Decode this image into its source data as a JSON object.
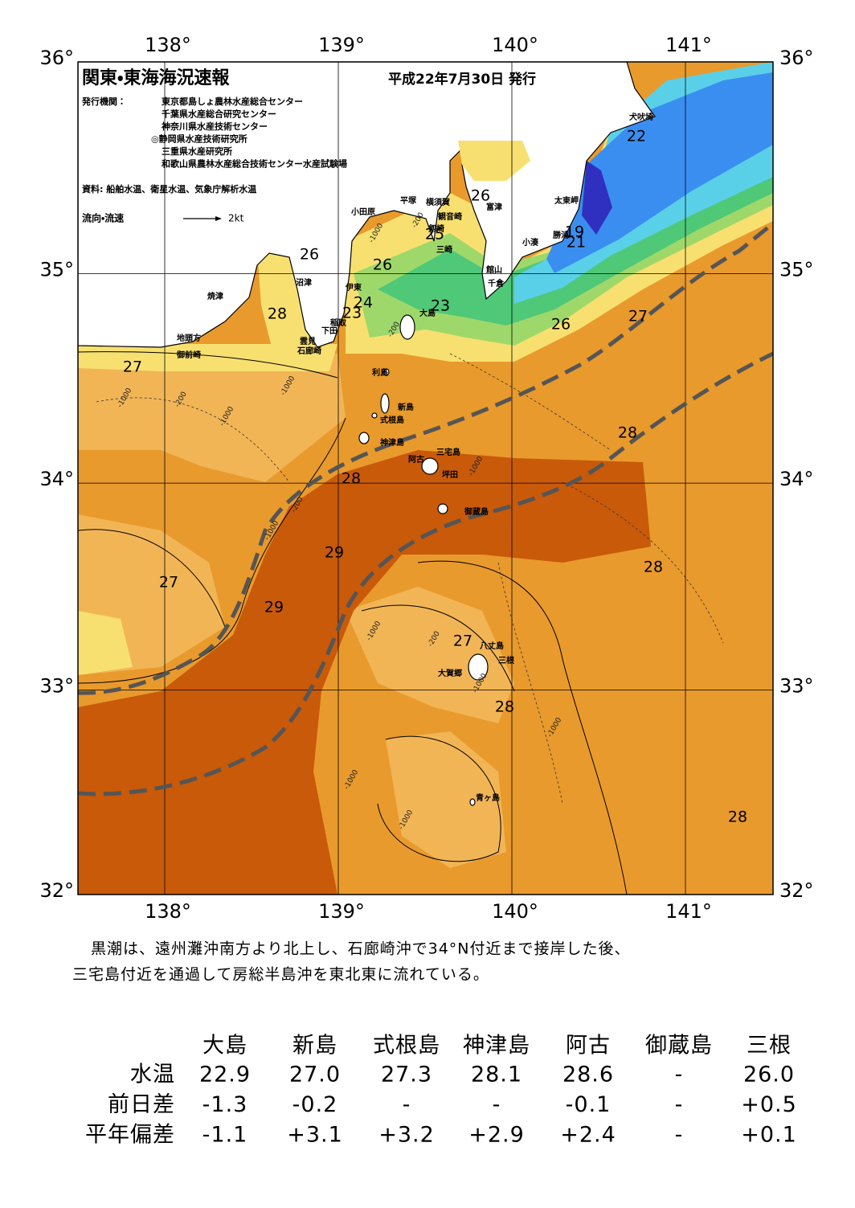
{
  "map": {
    "title": "関東・東海海況速報",
    "issued": "平成22年7月30日 発行",
    "issuers_label": "発行機関：",
    "issuers": [
      "東京都島しょ農林水産総合センター",
      "千葉県水産総合研究センター",
      "神奈川県水産技術センター",
      "◎静岡県水産技術研究所",
      "三重県水産研究所",
      "和歌山県農林水産総合技術センター水産試験場"
    ],
    "sources": "資料: 船舶水温、衛星水温、気象庁解析水温",
    "legend": {
      "label": "流向・流速",
      "scale": "2kt"
    },
    "lon_ticks": [
      {
        "value": 138,
        "label": "138°"
      },
      {
        "value": 139,
        "label": "139°"
      },
      {
        "value": 140,
        "label": "140°"
      },
      {
        "value": 141,
        "label": "141°"
      }
    ],
    "lat_ticks": [
      {
        "value": 36,
        "label": "36°"
      },
      {
        "value": 35,
        "label": "35°"
      },
      {
        "value": 34,
        "label": "34°"
      },
      {
        "value": 33,
        "label": "33°"
      },
      {
        "value": 32,
        "label": "32°"
      }
    ],
    "places": [
      "犬吠埼",
      "太東岬",
      "勝浦",
      "小湊",
      "館山",
      "千倉",
      "富津",
      "横須賀",
      "観音崎",
      "剱崎",
      "三崎",
      "平塚",
      "小田原",
      "沼津",
      "伊東",
      "焼津",
      "稲取",
      "下田",
      "雲見",
      "石廊崎",
      "地頭方",
      "御前崎",
      "大島",
      "利島",
      "新島",
      "式根島",
      "神津島",
      "三宅島",
      "阿古",
      "坪田",
      "御蔵島",
      "八丈島",
      "三根",
      "大賀郷",
      "青ヶ島"
    ],
    "contour_labels": [
      "26",
      "28",
      "27",
      "26",
      "24",
      "23",
      "23",
      "26",
      "25",
      "22",
      "26",
      "27",
      "28",
      "28",
      "29",
      "27",
      "29",
      "28",
      "27",
      "28",
      "28",
      "21",
      "19"
    ],
    "depth_labels": [
      "-200",
      "-1000",
      "-200",
      "-1000",
      "-1000",
      "-200",
      "-1000",
      "-1000",
      "-1000",
      "-200",
      "-1000",
      "-1000",
      "-1000",
      "-1000",
      "-200",
      "-1000"
    ]
  },
  "description": [
    "黒潮は、遠州灘沖南方より北上し、石廊崎沖で34°N付近まで接岸した後、",
    "三宅島付近を通過して房総半島沖を東北東に流れている。"
  ],
  "table": {
    "columns": [
      "大島",
      "新島",
      "式根島",
      "神津島",
      "阿古",
      "御蔵島",
      "三根"
    ],
    "rows": [
      {
        "label": "水温",
        "values": [
          "22.9",
          "27.0",
          "27.3",
          "28.1",
          "28.6",
          "-",
          "26.0"
        ]
      },
      {
        "label": "前日差",
        "values": [
          "-1.3",
          "-0.2",
          "-",
          "-",
          "-0.1",
          "-",
          "+0.5"
        ]
      },
      {
        "label": "平年偏差",
        "values": [
          "-1.1",
          "+3.1",
          "+3.2",
          "+2.9",
          "+2.4",
          "-",
          "+0.1"
        ]
      }
    ]
  }
}
